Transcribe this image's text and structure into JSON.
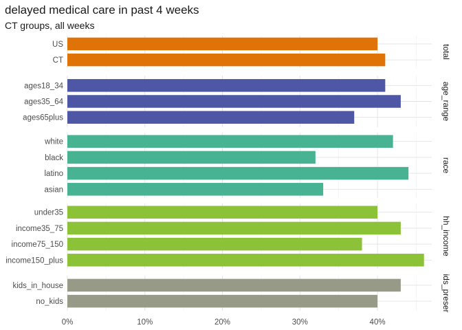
{
  "chart_data": {
    "type": "bar",
    "orientation": "horizontal",
    "title": "delayed medical care in past 4 weeks",
    "subtitle": "CT groups, all weeks",
    "xlabel": "",
    "ylabel": "",
    "xlim": [
      0,
      0.47
    ],
    "x_ticks": [
      0,
      0.1,
      0.2,
      0.3,
      0.4
    ],
    "x_tick_labels": [
      "0%",
      "10%",
      "20%",
      "30%",
      "40%"
    ],
    "grid": true,
    "legend": "none",
    "facets": [
      {
        "label": "total",
        "color": "#E07307",
        "categories": [
          "US",
          "CT"
        ],
        "values": [
          0.4,
          0.41
        ]
      },
      {
        "label": "age_range",
        "color": "#4E56A6",
        "categories": [
          "ages18_34",
          "ages35_64",
          "ages65plus"
        ],
        "values": [
          0.41,
          0.43,
          0.37
        ]
      },
      {
        "label": "race",
        "color": "#47B393",
        "categories": [
          "white",
          "black",
          "latino",
          "asian"
        ],
        "values": [
          0.42,
          0.32,
          0.44,
          0.33
        ]
      },
      {
        "label": "hh_income",
        "color": "#8BC238",
        "categories": [
          "under35",
          "income35_75",
          "income75_150",
          "income150_plus"
        ],
        "values": [
          0.4,
          0.43,
          0.38,
          0.46
        ]
      },
      {
        "label": "ids_preser",
        "color": "#979A87",
        "categories": [
          "kids_in_house",
          "no_kids"
        ],
        "values": [
          0.43,
          0.4
        ]
      }
    ]
  }
}
